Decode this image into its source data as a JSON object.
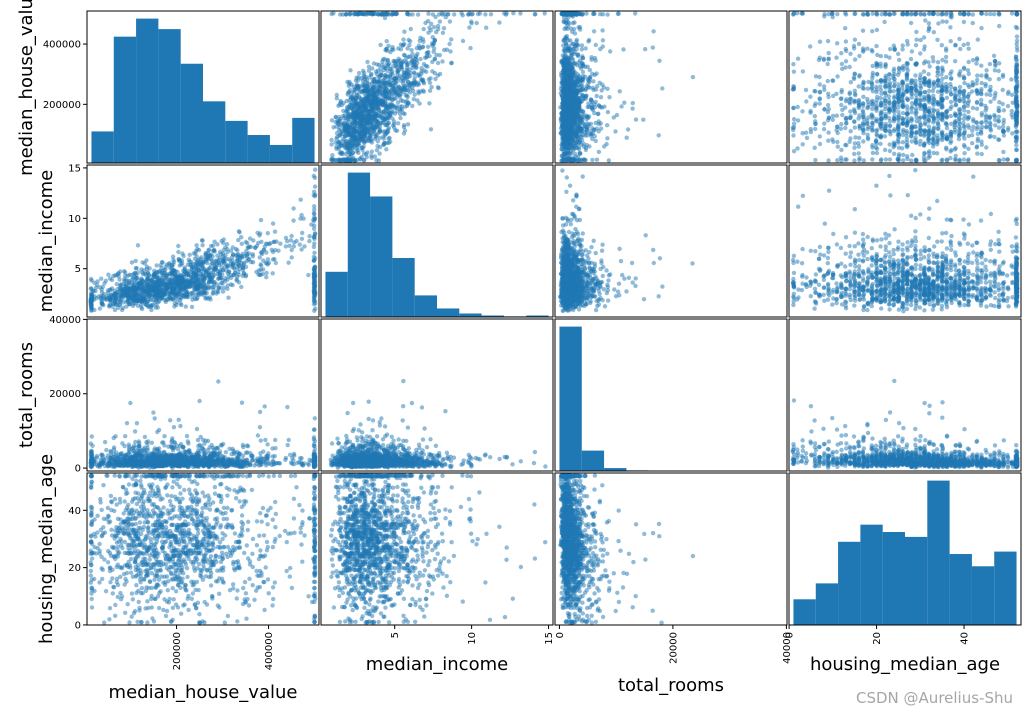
{
  "chart_data": {
    "type": "scatter_matrix",
    "variables": [
      "median_house_value",
      "median_income",
      "total_rooms",
      "housing_median_age"
    ],
    "ranges": {
      "median_house_value": [
        14999,
        500001
      ],
      "median_income": [
        0.5,
        15.0
      ],
      "total_rooms": [
        2,
        39320
      ],
      "housing_median_age": [
        1,
        52
      ]
    },
    "ticks": {
      "median_house_value": {
        "values": [
          200000,
          400000
        ],
        "labels": [
          "200000",
          "400000"
        ]
      },
      "median_income": {
        "values": [
          5,
          10,
          15
        ],
        "labels": [
          "5",
          "10",
          "15"
        ]
      },
      "total_rooms": {
        "values": [
          0,
          20000,
          40000
        ],
        "labels": [
          "0",
          "20000",
          "40000"
        ]
      },
      "housing_median_age": {
        "values": [
          0,
          20,
          40
        ],
        "labels": [
          "0",
          "20",
          "40"
        ]
      }
    },
    "histograms": {
      "median_house_value": {
        "bins": [
          14999,
          63499,
          111999,
          160499,
          208999,
          257499,
          305999,
          354499,
          402999,
          451499,
          500001
        ],
        "counts": [
          1050,
          4200,
          4800,
          4450,
          3300,
          2050,
          1400,
          930,
          600,
          1500
        ]
      },
      "median_income": {
        "bins": [
          0.5,
          1.95,
          3.4,
          4.85,
          6.3,
          7.75,
          9.2,
          10.65,
          12.1,
          13.55,
          15.0
        ],
        "counts": [
          1800,
          5750,
          4800,
          2350,
          860,
          340,
          140,
          60,
          25,
          60
        ]
      },
      "total_rooms": {
        "bins": [
          2,
          3934,
          7866,
          11797,
          15729,
          19661,
          23593,
          27525,
          31456,
          35388,
          39320
        ],
        "counts": [
          13800,
          1950,
          280,
          60,
          20,
          8,
          3,
          2,
          1,
          1
        ]
      },
      "housing_median_age": {
        "bins": [
          1,
          6.1,
          11.2,
          16.3,
          21.4,
          26.5,
          31.6,
          36.7,
          41.8,
          46.9,
          52
        ],
        "counts": [
          1050,
          1700,
          3400,
          4100,
          3800,
          3600,
          5900,
          2900,
          2400,
          3000
        ]
      }
    },
    "scatter_color": "#1f77b4",
    "hist_color": "#1f77b4"
  },
  "labels": {
    "median_house_value": "median_house_value",
    "median_income": "median_income",
    "total_rooms": "total_rooms",
    "housing_median_age": "housing_median_age",
    "row0_ylabel_visible": "median_house_valu"
  },
  "watermark": "CSDN @Aurelius-Shu"
}
